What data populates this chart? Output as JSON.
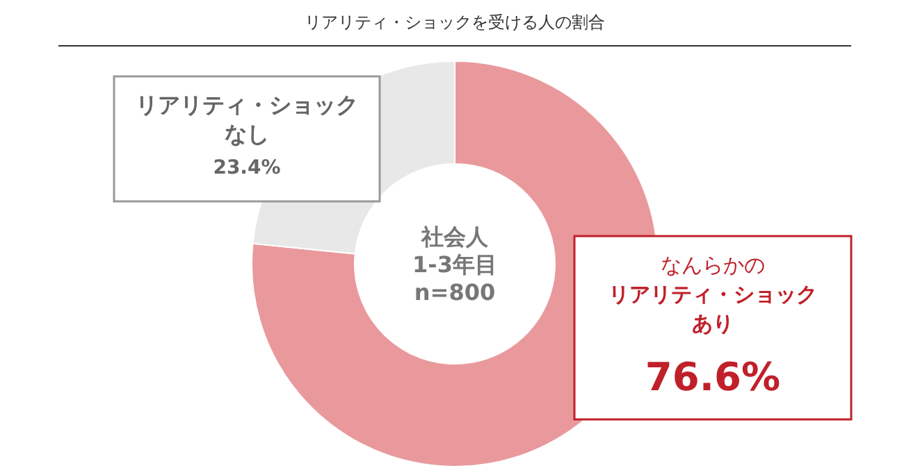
{
  "chart_data": {
    "type": "donut",
    "title": "リアリティ・ショックを受ける人の割合",
    "categories": [
      "なんらかのリアリティ・ショックあり",
      "リアリティ・ショックなし"
    ],
    "values": [
      76.6,
      23.4
    ],
    "colors": [
      "#e9999c",
      "#e8e8e8"
    ],
    "value_labels": [
      "76.6%",
      "23.4%"
    ],
    "annotations": [
      "社会人\n1-3年目\nn=800"
    ]
  }
}
